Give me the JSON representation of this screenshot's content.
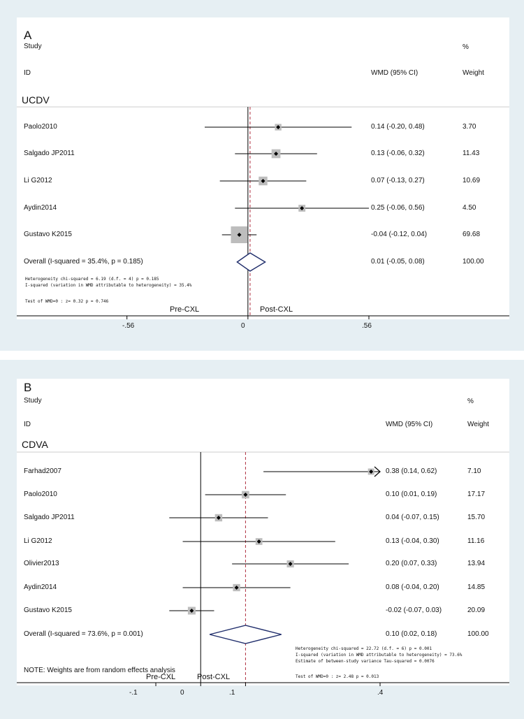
{
  "chart_data": [
    {
      "type": "forest",
      "panel_label": "A",
      "section_label": "UCDV",
      "header": {
        "study": "Study",
        "id": "ID",
        "effect": "WMD (95% CI)",
        "pct": "%",
        "weight": "Weight"
      },
      "xticks": [
        -0.56,
        0,
        0.56
      ],
      "xtick_labels": [
        "-.56",
        "0",
        ".56"
      ],
      "xlim": [
        -1.07,
        1.21
      ],
      "overall_ref": 0.01,
      "studies": [
        {
          "name": "Paolo2010",
          "est": 0.14,
          "lo": -0.2,
          "hi": 0.48,
          "ci_text": "0.14 (-0.20, 0.48)",
          "weight_text": "3.70",
          "weight": 3.7
        },
        {
          "name": "Salgado JP2011",
          "est": 0.13,
          "lo": -0.06,
          "hi": 0.32,
          "ci_text": "0.13 (-0.06, 0.32)",
          "weight_text": "11.43",
          "weight": 11.43
        },
        {
          "name": "Li G2012",
          "est": 0.07,
          "lo": -0.13,
          "hi": 0.27,
          "ci_text": "0.07 (-0.13, 0.27)",
          "weight_text": "10.69",
          "weight": 10.69
        },
        {
          "name": "Aydin2014",
          "est": 0.25,
          "lo": -0.06,
          "hi": 0.56,
          "ci_text": "0.25 (-0.06, 0.56)",
          "weight_text": "4.50",
          "weight": 4.5
        },
        {
          "name": "Gustavo K2015",
          "est": -0.04,
          "lo": -0.12,
          "hi": 0.04,
          "ci_text": "-0.04 (-0.12, 0.04)",
          "weight_text": "69.68",
          "weight": 69.68
        }
      ],
      "overall": {
        "name": "Overall  (I-squared = 35.4%, p = 0.185)",
        "est": 0.01,
        "lo": -0.05,
        "hi": 0.08,
        "ci_text": "0.01 (-0.05, 0.08)",
        "weight_text": "100.00"
      },
      "notes": [
        "Heterogeneity chi-squared =   6.19 (d.f. = 4) p = 0.185",
        "I-squared (variation in WMD attributable to heterogeneity) =  35.4%",
        "Test of WMD=0 : z=   0.32 p = 0.746"
      ],
      "direction_left": "Pre-CXL",
      "direction_right": "Post-CXL",
      "colors": {
        "ci_line": "#000000",
        "box": "#bdbdbd",
        "diamond": "#1f2d6b",
        "ref_line": "#b03040",
        "zero_line": "#000000"
      }
    },
    {
      "type": "forest",
      "panel_label": "B",
      "section_label": "CDVA",
      "header": {
        "study": "Study",
        "id": "ID",
        "effect": "WMD (95% CI)",
        "pct": "%",
        "weight": "Weight"
      },
      "xticks": [
        -0.1,
        0,
        0.1,
        0.4
      ],
      "xtick_labels": [
        "-.1",
        "0",
        ".1",
        ".4"
      ],
      "xlim": [
        -0.22,
        0.4
      ],
      "overall_ref": 0.1,
      "studies": [
        {
          "name": "Farhad2007",
          "est": 0.38,
          "lo": 0.14,
          "hi": 0.62,
          "ci_text": "0.38 (0.14, 0.62)",
          "weight_text": "7.10",
          "weight": 7.1,
          "arrow_right": true
        },
        {
          "name": "Paolo2010",
          "est": 0.1,
          "lo": 0.01,
          "hi": 0.19,
          "ci_text": "0.10 (0.01, 0.19)",
          "weight_text": "17.17",
          "weight": 17.17
        },
        {
          "name": "Salgado JP2011",
          "est": 0.04,
          "lo": -0.07,
          "hi": 0.15,
          "ci_text": "0.04 (-0.07, 0.15)",
          "weight_text": "15.70",
          "weight": 15.7
        },
        {
          "name": "Li G2012",
          "est": 0.13,
          "lo": -0.04,
          "hi": 0.3,
          "ci_text": "0.13 (-0.04, 0.30)",
          "weight_text": "11.16",
          "weight": 11.16
        },
        {
          "name": "Olivier2013",
          "est": 0.2,
          "lo": 0.07,
          "hi": 0.33,
          "ci_text": "0.20 (0.07, 0.33)",
          "weight_text": "13.94",
          "weight": 13.94
        },
        {
          "name": "Aydin2014",
          "est": 0.08,
          "lo": -0.04,
          "hi": 0.2,
          "ci_text": "0.08 (-0.04, 0.20)",
          "weight_text": "14.85",
          "weight": 14.85
        },
        {
          "name": "Gustavo K2015",
          "est": -0.02,
          "lo": -0.07,
          "hi": 0.03,
          "ci_text": "-0.02 (-0.07, 0.03)",
          "weight_text": "20.09",
          "weight": 20.09
        }
      ],
      "overall": {
        "name": "Overall  (I-squared = 73.6%, p = 0.001)",
        "est": 0.1,
        "lo": 0.02,
        "hi": 0.18,
        "ci_text": "0.10 (0.02, 0.18)",
        "weight_text": "100.00"
      },
      "notes": [
        "Heterogeneity chi-squared =  22.72 (d.f. = 6) p = 0.001",
        "I-squared (variation in WMD attributable to heterogeneity) =  73.6%",
        "Estimate of between-study variance Tau-squared =  0.0076",
        "Test of WMD=0 : z=   2.48 p = 0.013"
      ],
      "footnote": "NOTE: Weights are from random effects analysis",
      "direction_left": "Pre-CXL",
      "direction_right": "Post-CXL",
      "colors": {
        "ci_line": "#000000",
        "box": "#bdbdbd",
        "diamond": "#1f2d6b",
        "ref_line": "#b03040",
        "zero_line": "#000000"
      }
    }
  ]
}
